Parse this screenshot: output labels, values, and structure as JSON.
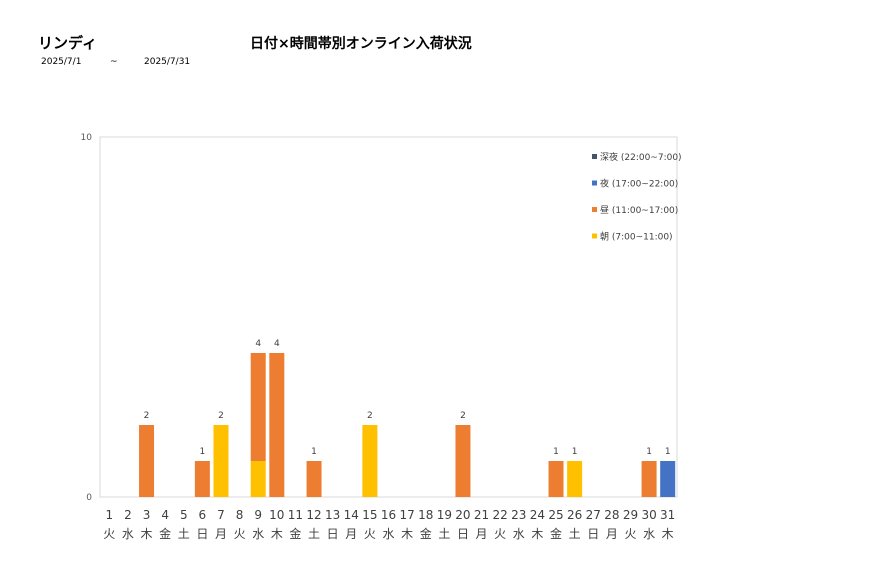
{
  "header": {
    "shop_name": "リンディ",
    "title": "日付×時間帯別オンライン入荷状況",
    "date_from": "2025/7/1",
    "date_sep": "~",
    "date_to": "2025/7/31"
  },
  "colors": {
    "late_night": "#44546A",
    "night": "#4472C4",
    "day": "#ED7D31",
    "morning": "#FFC000"
  },
  "chart_data": {
    "type": "bar",
    "stacked": true,
    "title": "日付×時間帯別オンライン入荷状況",
    "ylim": [
      0,
      10
    ],
    "yticks": [
      0,
      10
    ],
    "legend_position": "top-right",
    "categories": [
      "1",
      "2",
      "3",
      "4",
      "5",
      "6",
      "7",
      "8",
      "9",
      "10",
      "11",
      "12",
      "13",
      "14",
      "15",
      "16",
      "17",
      "18",
      "19",
      "20",
      "21",
      "22",
      "23",
      "24",
      "25",
      "26",
      "27",
      "28",
      "29",
      "30",
      "31"
    ],
    "weekdays": [
      "火",
      "水",
      "木",
      "金",
      "土",
      "日",
      "月",
      "火",
      "水",
      "木",
      "金",
      "土",
      "日",
      "月",
      "火",
      "水",
      "木",
      "金",
      "土",
      "日",
      "月",
      "火",
      "水",
      "木",
      "金",
      "土",
      "日",
      "月",
      "火",
      "水",
      "木"
    ],
    "series": [
      {
        "name": "朝 (7:00~11:00)",
        "color_key": "morning",
        "values": [
          0,
          0,
          0,
          0,
          0,
          0,
          2,
          0,
          1,
          0,
          0,
          0,
          0,
          0,
          2,
          0,
          0,
          0,
          0,
          0,
          0,
          0,
          0,
          0,
          0,
          1,
          0,
          0,
          0,
          0,
          0
        ]
      },
      {
        "name": "昼 (11:00~17:00)",
        "color_key": "day",
        "values": [
          0,
          0,
          2,
          0,
          0,
          1,
          0,
          0,
          3,
          4,
          0,
          1,
          0,
          0,
          0,
          0,
          0,
          0,
          0,
          2,
          0,
          0,
          0,
          0,
          1,
          0,
          0,
          0,
          0,
          1,
          0
        ]
      },
      {
        "name": "夜 (17:00~22:00)",
        "color_key": "night",
        "values": [
          0,
          0,
          0,
          0,
          0,
          0,
          0,
          0,
          0,
          0,
          0,
          0,
          0,
          0,
          0,
          0,
          0,
          0,
          0,
          0,
          0,
          0,
          0,
          0,
          0,
          0,
          0,
          0,
          0,
          0,
          1
        ]
      },
      {
        "name": "深夜 (22:00~7:00)",
        "color_key": "late_night",
        "values": [
          0,
          0,
          0,
          0,
          0,
          0,
          0,
          0,
          0,
          0,
          0,
          0,
          0,
          0,
          0,
          0,
          0,
          0,
          0,
          0,
          0,
          0,
          0,
          0,
          0,
          0,
          0,
          0,
          0,
          0,
          0
        ]
      }
    ],
    "totals": [
      0,
      0,
      2,
      0,
      0,
      1,
      2,
      0,
      4,
      4,
      0,
      1,
      0,
      0,
      2,
      0,
      0,
      0,
      0,
      2,
      0,
      0,
      0,
      0,
      1,
      1,
      0,
      0,
      0,
      1,
      1
    ]
  }
}
